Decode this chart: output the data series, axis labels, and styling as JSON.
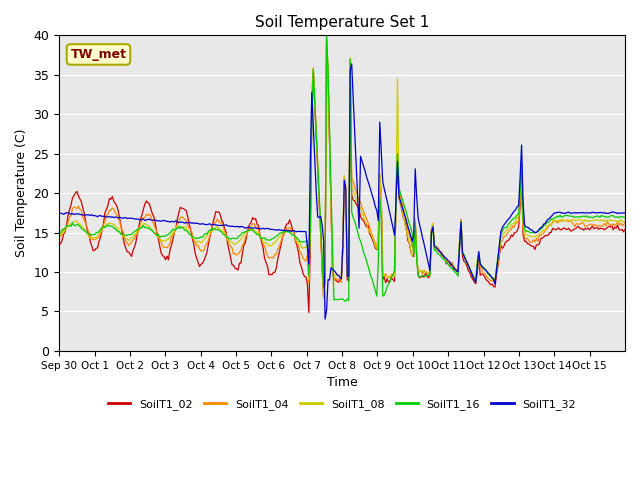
{
  "title": "Soil Temperature Set 1",
  "xlabel": "Time",
  "ylabel": "Soil Temperature (C)",
  "ylim": [
    0,
    40
  ],
  "background_color": "#e8e8e8",
  "annotation_text": "TW_met",
  "annotation_color": "#800000",
  "annotation_bg": "#ffffcc",
  "annotation_border": "#aaaa00",
  "series_names": [
    "SoilT1_02",
    "SoilT1_04",
    "SoilT1_08",
    "SoilT1_16",
    "SoilT1_32"
  ],
  "series_colors": [
    "#cc0000",
    "#ff8800",
    "#cccc00",
    "#00cc00",
    "#0000cc"
  ],
  "x_tick_labels": [
    "Sep 30",
    "Oct 1",
    "Oct 2",
    "Oct 3",
    "Oct 4",
    "Oct 5",
    "Oct 6",
    "Oct 7",
    "Oct 8",
    "Oct 9",
    "Oct 10",
    "Oct 11",
    "Oct 12",
    "Oct 13",
    "Oct 14",
    "Oct 15"
  ],
  "grid_color": "#ffffff",
  "fig_bg": "#ffffff"
}
